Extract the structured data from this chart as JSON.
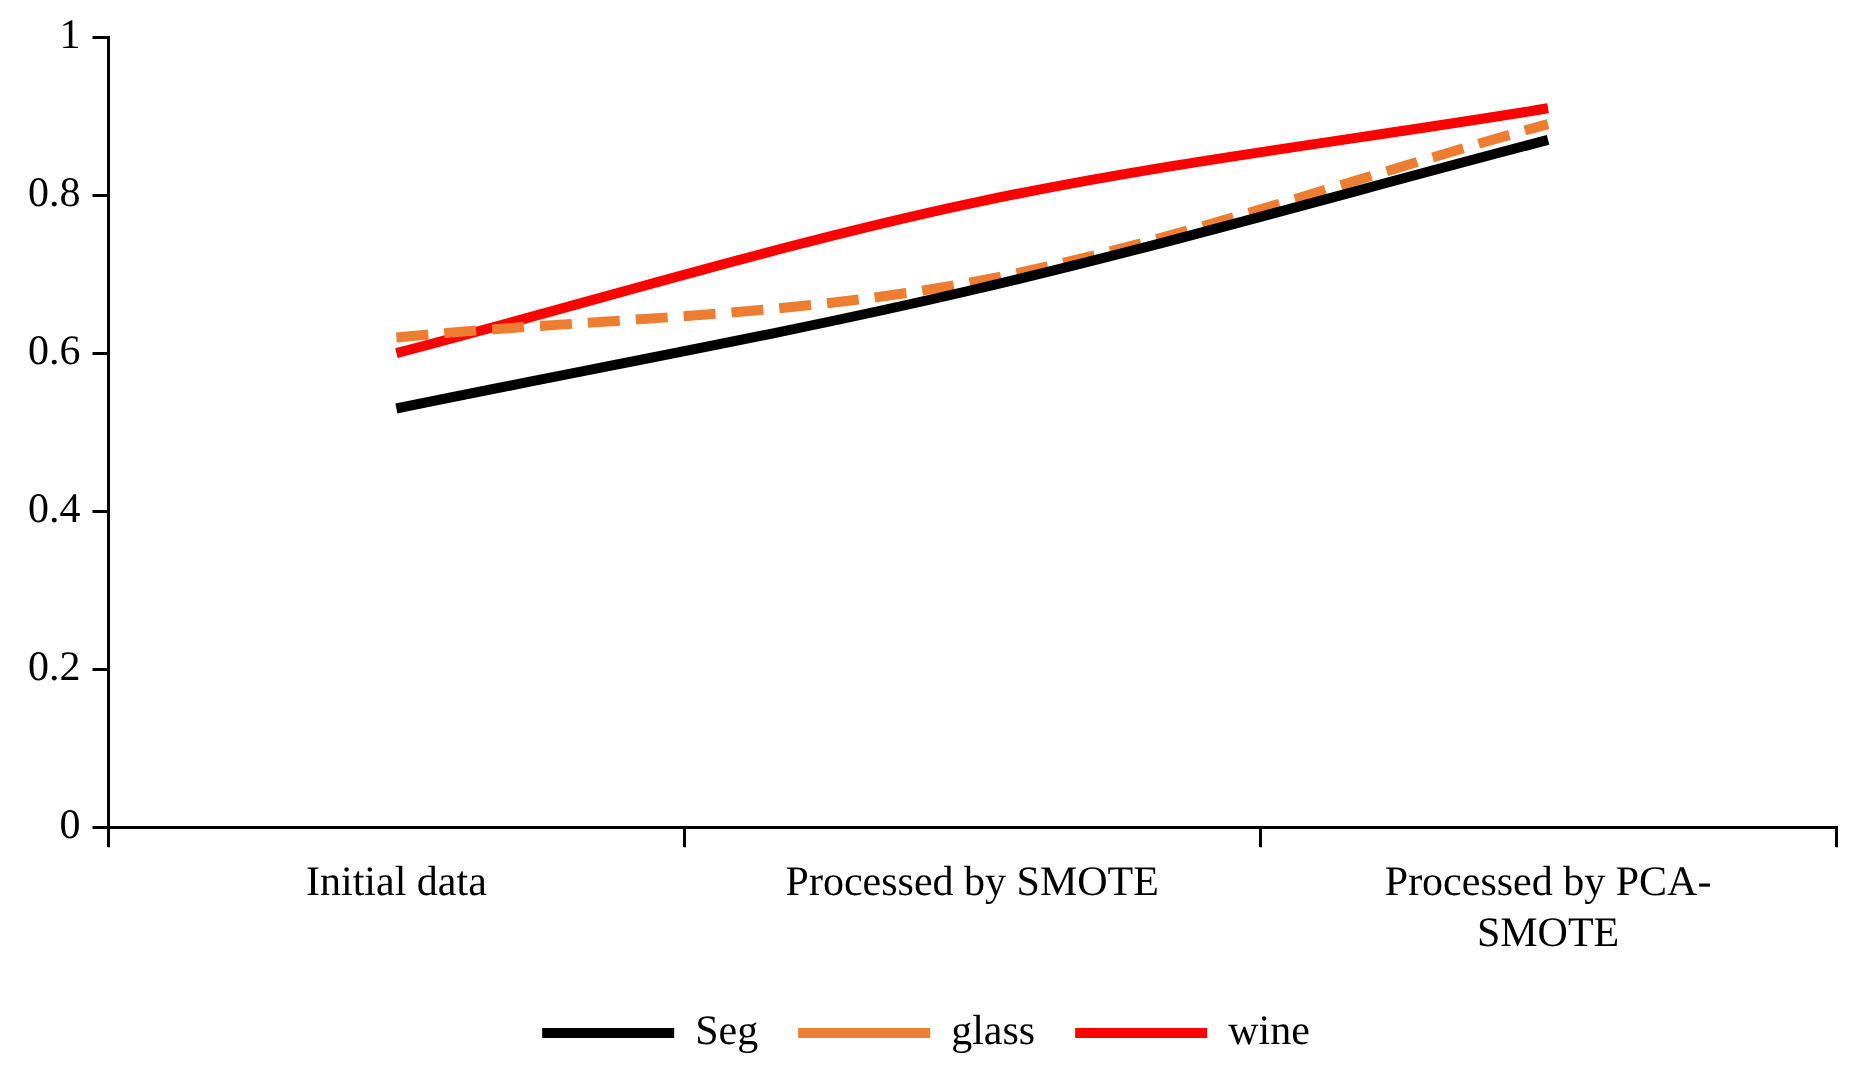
{
  "chart_data": {
    "type": "line",
    "categories": [
      "Initial data",
      "Processed by SMOTE",
      "Processed by PCA-SMOTE"
    ],
    "series": [
      {
        "name": "Seg",
        "color": "#000000",
        "values": [
          0.53,
          0.68,
          0.87
        ],
        "line_style": "solid"
      },
      {
        "name": "glass",
        "color": "#ed7d31",
        "values": [
          0.62,
          0.69,
          0.89
        ],
        "line_style": "dashed"
      },
      {
        "name": "wine",
        "color": "#ff0000",
        "values": [
          0.6,
          0.79,
          0.91
        ],
        "line_style": "solid"
      }
    ],
    "ylim": [
      0,
      1
    ],
    "yticks": [
      0,
      0.2,
      0.4,
      0.6,
      0.8,
      1
    ],
    "grid": false,
    "legend": "bottom",
    "marker": "none"
  }
}
